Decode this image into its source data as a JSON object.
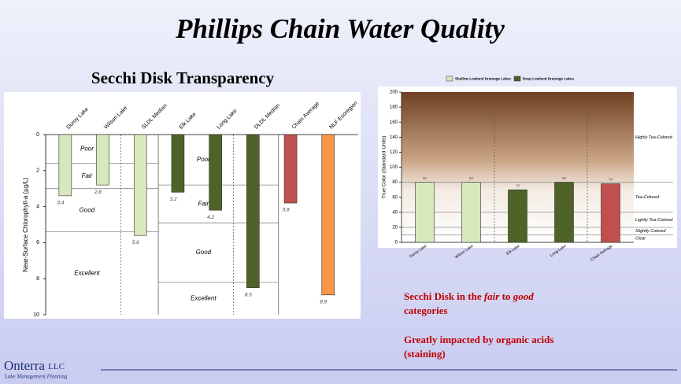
{
  "slide": {
    "title": "Phillips Chain Water Quality",
    "subtitle": "Secchi Disk Transparency",
    "note1": [
      "Secchi Disk in the",
      "fair",
      "to",
      "good",
      "categories"
    ],
    "note2": [
      "Greatly impacted by organic acids",
      "(staining)"
    ],
    "logo": {
      "name": "Onterra",
      "suffix": "LLC",
      "tagline": "Lake Management Planning"
    }
  },
  "chart_data": [
    {
      "type": "bar",
      "inverted": true,
      "ylabel": "Near-Surface Chlorophyll-a  (µg/L)",
      "categories": [
        "Duroy Lake",
        "Wilson Lake",
        "SLDL Median",
        "Elk Lake",
        "Long Lake",
        "DLDL Median",
        "Chain Average",
        "NLF Ecoregion"
      ],
      "values": [
        3.4,
        2.8,
        5.6,
        3.2,
        4.2,
        8.5,
        3.8,
        8.9
      ],
      "colors": [
        "#d7e8bd",
        "#d7e8bd",
        "#d7e8bd",
        "#4f6228",
        "#4f6228",
        "#4f6228",
        "#c0504d",
        "#f79646"
      ],
      "ylim": [
        0,
        10
      ],
      "yticks": [
        0,
        2,
        4,
        6,
        8,
        10
      ],
      "zones_shallow": [
        {
          "label": "Poor",
          "from": 0,
          "to": 1.6
        },
        {
          "label": "Fair",
          "from": 1.6,
          "to": 3
        },
        {
          "label": "Good",
          "from": 3,
          "to": 5.4
        },
        {
          "label": "Excellent",
          "from": 5.4,
          "to": 10
        }
      ],
      "zones_deep": [
        {
          "label": "Poor",
          "from": 0,
          "to": 2.8
        },
        {
          "label": "Fair",
          "from": 2.8,
          "to": 4.9
        },
        {
          "label": "Good",
          "from": 4.9,
          "to": 8.2
        },
        {
          "label": "Excellent",
          "from": 8.2,
          "to": 10
        }
      ]
    },
    {
      "type": "bar",
      "ylabel": "True Color (Standard Units)",
      "legend": [
        {
          "name": "Shallow Lowland Drainage Lakes",
          "color": "#d7e8bd"
        },
        {
          "name": "Deep Lowland Drainage Lakes",
          "color": "#4f6228"
        }
      ],
      "categories": [
        "Duroy Lake",
        "Wilson Lake",
        "Elk Lake",
        "Long Lake",
        "Chain Average"
      ],
      "values": [
        80,
        80,
        70,
        80,
        78
      ],
      "colors": [
        "#d7e8bd",
        "#d7e8bd",
        "#4f6228",
        "#4f6228",
        "#c0504d"
      ],
      "ylim": [
        0,
        200
      ],
      "yticks": [
        0,
        20,
        40,
        60,
        80,
        100,
        120,
        140,
        160,
        180,
        200
      ],
      "zones": [
        {
          "label": "Highly Tea-Colored",
          "from": 80,
          "to": 200
        },
        {
          "label": "Tea-Colored",
          "from": 40,
          "to": 80
        },
        {
          "label": "Lightly Tea-Colored",
          "from": 20,
          "to": 40
        },
        {
          "label": "Slightly Colored",
          "from": 10,
          "to": 20
        },
        {
          "label": "Clear",
          "from": 0,
          "to": 10
        }
      ]
    }
  ]
}
